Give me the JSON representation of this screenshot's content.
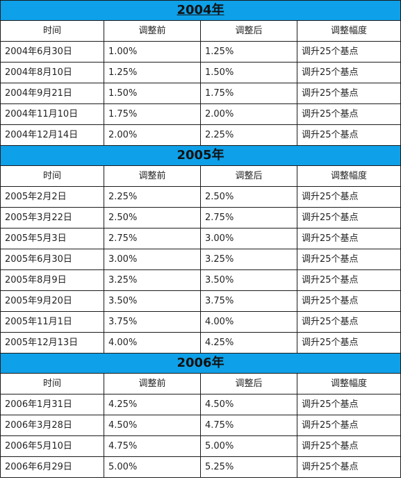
{
  "columns": [
    "时间",
    "调整前",
    "调整后",
    "调整幅度"
  ],
  "sections": [
    {
      "year": "2004年",
      "underlined": true,
      "rows": [
        [
          "2004年6月30日",
          "1.00%",
          "1.25%",
          "调升25个基点"
        ],
        [
          "2004年8月10日",
          "1.25%",
          "1.50%",
          "调升25个基点"
        ],
        [
          "2004年9月21日",
          "1.50%",
          "1.75%",
          "调升25个基点"
        ],
        [
          "2004年11月10日",
          "1.75%",
          "2.00%",
          "调升25个基点"
        ],
        [
          "2004年12月14日",
          "2.00%",
          "2.25%",
          "调升25个基点"
        ]
      ]
    },
    {
      "year": "2005年",
      "underlined": false,
      "rows": [
        [
          "2005年2月2日",
          "2.25%",
          "2.50%",
          "调升25个基点"
        ],
        [
          "2005年3月22日",
          "2.50%",
          "2.75%",
          "调升25个基点"
        ],
        [
          "2005年5月3日",
          "2.75%",
          "3.00%",
          "调升25个基点"
        ],
        [
          "2005年6月30日",
          "3.00%",
          "3.25%",
          "调升25个基点"
        ],
        [
          "2005年8月9日",
          "3.25%",
          "3.50%",
          "调升25个基点"
        ],
        [
          "2005年9月20日",
          "3.50%",
          "3.75%",
          "调升25个基点"
        ],
        [
          "2005年11月1日",
          "3.75%",
          "4.00%",
          "调升25个基点"
        ],
        [
          "2005年12月13日",
          "4.00%",
          "4.25%",
          "调升25个基点"
        ]
      ]
    },
    {
      "year": "2006年",
      "underlined": false,
      "rows": [
        [
          "2006年1月31日",
          "4.25%",
          "4.50%",
          "调升25个基点"
        ],
        [
          "2006年3月28日",
          "4.50%",
          "4.75%",
          "调升25个基点"
        ],
        [
          "2006年5月10日",
          "4.75%",
          "5.00%",
          "调升25个基点"
        ],
        [
          "2006年6月29日",
          "5.00%",
          "5.25%",
          "调升25个基点"
        ]
      ]
    }
  ],
  "colors": {
    "year_band": "#0ea0e8",
    "border": "#1a1a1a"
  }
}
